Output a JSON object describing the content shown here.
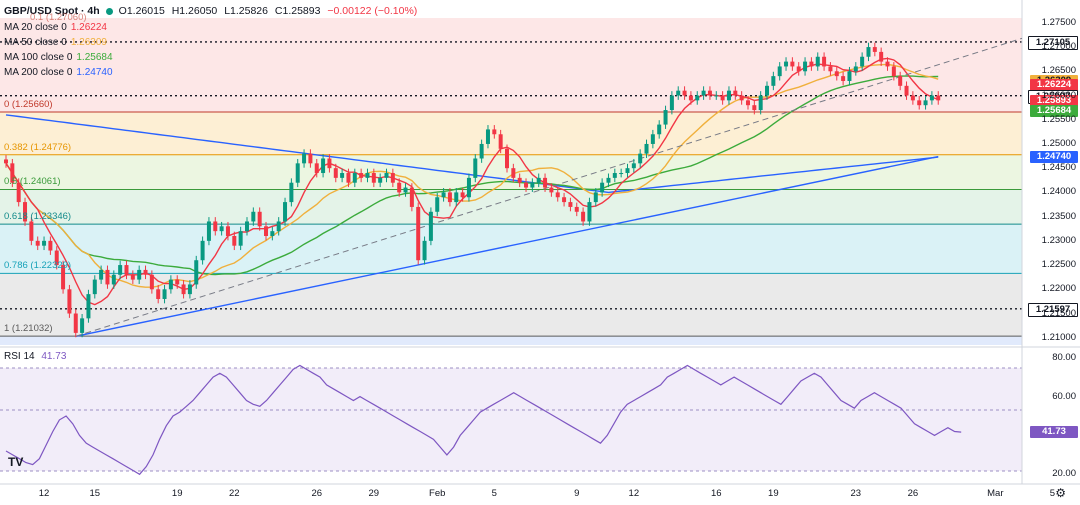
{
  "header": {
    "symbol": "GBP/USD Spot · 4h",
    "open": "O1.26015",
    "high": "H1.26050",
    "low": "L1.25826",
    "close": "C1.25893",
    "change": "−0.00122 (−0.10%)"
  },
  "ma_legend": [
    {
      "label": "MA 20 close 0",
      "value": "1.26224",
      "color": "#f23645"
    },
    {
      "label": "MA 50 close 0",
      "value": "1.26309",
      "color": "#f0b03c"
    },
    {
      "label": "MA 100 close 0",
      "value": "1.25684",
      "color": "#3cab3c"
    },
    {
      "label": "MA 200 close 0",
      "value": "1.24740",
      "color": "#2962ff"
    }
  ],
  "fib_levels": [
    {
      "label": "0 (1.25660)",
      "price": 1.2566,
      "color": "#c0392b"
    },
    {
      "label": "0.382 (1.24776)",
      "price": 1.24776,
      "color": "#e69500"
    },
    {
      "label": "0.5 (1.24061)",
      "price": 1.24061,
      "color": "#3a9a3a"
    },
    {
      "label": "0.618 (1.23346)",
      "price": 1.23346,
      "color": "#138a8a"
    },
    {
      "label": "0.786 (1.22329)",
      "price": 1.22329,
      "color": "#17a2b8"
    },
    {
      "label": "1 (1.21032)",
      "price": 1.21032,
      "color": "#5a5a5a"
    }
  ],
  "fib_top_label": "0.1 (1.27060)",
  "price_tags": [
    {
      "text": "1.27105",
      "bg": "#ffffff",
      "fg": "#131722",
      "price": 1.27105
    },
    {
      "text": "1.26309",
      "bg": "#f0b03c",
      "fg": "#131722",
      "price": 1.26309
    },
    {
      "text": "1.26224",
      "bg": "#f23645",
      "fg": "#ffffff",
      "price": 1.26224
    },
    {
      "text": "1.25997",
      "bg": "#ffffff",
      "fg": "#131722",
      "price": 1.25997
    },
    {
      "text": "1.25893",
      "bg": "#f23645",
      "fg": "#ffffff",
      "price": 1.25893
    },
    {
      "text": "1.25684",
      "bg": "#3cab3c",
      "fg": "#ffffff",
      "price": 1.25684
    },
    {
      "text": "1.24740",
      "bg": "#2962ff",
      "fg": "#ffffff",
      "price": 1.2474
    },
    {
      "text": "1.21597",
      "bg": "#ffffff",
      "fg": "#131722",
      "price": 1.21597
    }
  ],
  "price_axis": [
    "1.27500",
    "1.27000",
    "1.26500",
    "1.26000",
    "1.25500",
    "1.25000",
    "1.24500",
    "1.24000",
    "1.23500",
    "1.23000",
    "1.22500",
    "1.22000",
    "1.21500",
    "1.21000"
  ],
  "date_axis": [
    {
      "label": "12",
      "i": 6
    },
    {
      "label": "15",
      "i": 14
    },
    {
      "label": "19",
      "i": 27
    },
    {
      "label": "22",
      "i": 36
    },
    {
      "label": "26",
      "i": 49
    },
    {
      "label": "29",
      "i": 58
    },
    {
      "label": "Feb",
      "i": 68
    },
    {
      "label": "5",
      "i": 77
    },
    {
      "label": "9",
      "i": 90
    },
    {
      "label": "12",
      "i": 99
    },
    {
      "label": "16",
      "i": 112
    },
    {
      "label": "19",
      "i": 121
    },
    {
      "label": "23",
      "i": 134
    },
    {
      "label": "26",
      "i": 143
    },
    {
      "label": "Mar",
      "i": 156
    },
    {
      "label": "5",
      "i": 165
    }
  ],
  "rsi": {
    "title": "RSI 14",
    "value": "41.73",
    "axis": [
      "80.00",
      "60.00",
      "40.00",
      "20.00"
    ]
  },
  "chart_data": {
    "type": "candlestick",
    "title": "GBP/USD Spot · 4h",
    "ylim": [
      1.2085,
      1.276
    ],
    "closes": [
      1.246,
      1.242,
      1.238,
      1.234,
      1.23,
      1.229,
      1.23,
      1.228,
      1.225,
      1.22,
      1.215,
      1.211,
      1.214,
      1.219,
      1.222,
      1.224,
      1.221,
      1.223,
      1.225,
      1.223,
      1.222,
      1.224,
      1.223,
      1.22,
      1.218,
      1.22,
      1.222,
      1.221,
      1.219,
      1.221,
      1.226,
      1.23,
      1.234,
      1.232,
      1.233,
      1.231,
      1.229,
      1.232,
      1.234,
      1.236,
      1.233,
      1.231,
      1.232,
      1.234,
      1.238,
      1.242,
      1.246,
      1.248,
      1.246,
      1.244,
      1.247,
      1.245,
      1.243,
      1.244,
      1.242,
      1.244,
      1.243,
      1.244,
      1.242,
      1.243,
      1.244,
      1.242,
      1.24,
      1.241,
      1.237,
      1.226,
      1.23,
      1.236,
      1.239,
      1.24,
      1.238,
      1.24,
      1.239,
      1.243,
      1.247,
      1.25,
      1.253,
      1.252,
      1.249,
      1.245,
      1.243,
      1.242,
      1.241,
      1.242,
      1.243,
      1.241,
      1.24,
      1.239,
      1.238,
      1.237,
      1.236,
      1.234,
      1.238,
      1.24,
      1.242,
      1.243,
      1.244,
      1.244,
      1.245,
      1.246,
      1.248,
      1.25,
      1.252,
      1.254,
      1.257,
      1.26,
      1.261,
      1.26,
      1.259,
      1.26,
      1.261,
      1.26,
      1.26,
      1.259,
      1.261,
      1.26,
      1.259,
      1.258,
      1.257,
      1.26,
      1.262,
      1.264,
      1.266,
      1.267,
      1.266,
      1.265,
      1.267,
      1.266,
      1.268,
      1.266,
      1.265,
      1.264,
      1.263,
      1.265,
      1.266,
      1.268,
      1.27,
      1.269,
      1.267,
      1.266,
      1.264,
      1.262,
      1.26,
      1.259,
      1.258,
      1.259,
      1.26,
      1.259
    ],
    "ma20_label": "MA 20",
    "ma50_label": "MA 50",
    "ma100_label": "MA 100",
    "ma200_label": "MA 200",
    "rsi_values": [
      32,
      30,
      28,
      26,
      25,
      28,
      35,
      42,
      48,
      50,
      46,
      40,
      36,
      34,
      32,
      30,
      28,
      26,
      24,
      22,
      20,
      24,
      30,
      38,
      45,
      50,
      52,
      55,
      58,
      62,
      66,
      70,
      72,
      70,
      66,
      62,
      58,
      56,
      55,
      58,
      62,
      66,
      70,
      74,
      76,
      74,
      72,
      70,
      66,
      64,
      62,
      60,
      58,
      60,
      58,
      56,
      54,
      52,
      50,
      48,
      46,
      44,
      42,
      40,
      38,
      34,
      30,
      34,
      40,
      44,
      48,
      52,
      54,
      56,
      58,
      60,
      62,
      60,
      58,
      56,
      54,
      52,
      50,
      48,
      46,
      44,
      42,
      40,
      38,
      36,
      40,
      46,
      52,
      56,
      58,
      60,
      62,
      64,
      66,
      70,
      72,
      74,
      76,
      74,
      72,
      70,
      68,
      66,
      68,
      70,
      68,
      66,
      64,
      62,
      60,
      58,
      56,
      60,
      64,
      68,
      70,
      72,
      70,
      66,
      62,
      58,
      56,
      54,
      58,
      60,
      62,
      60,
      58,
      56,
      54,
      50,
      46,
      44,
      42,
      40,
      42,
      44,
      42,
      41.73
    ]
  }
}
